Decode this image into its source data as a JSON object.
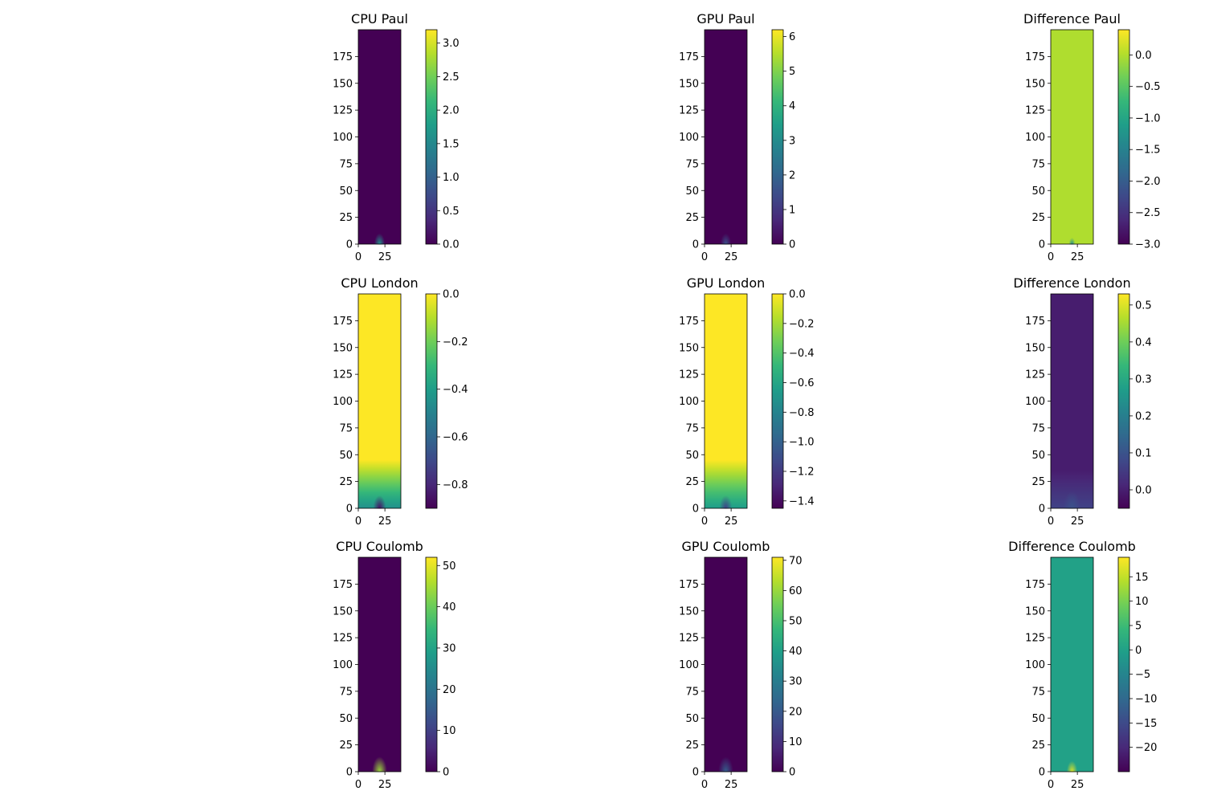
{
  "chart_data": [
    {
      "type": "heatmap",
      "title": "CPU Paul",
      "x_ticks": [
        "0",
        "25"
      ],
      "y_ticks": [
        "0",
        "25",
        "50",
        "75",
        "100",
        "125",
        "150",
        "175"
      ],
      "x_range": [
        0,
        40
      ],
      "y_range": [
        0,
        200
      ],
      "colorbar_range": [
        0,
        3.2
      ],
      "colorbar_ticks": [
        "0.0",
        "0.5",
        "1.0",
        "1.5",
        "2.0",
        "2.5",
        "3.0"
      ],
      "colorbar_tick_values": [
        0,
        0.5,
        1.0,
        1.5,
        2.0,
        2.5,
        3.0
      ],
      "background_level": 0.0,
      "hotspot": {
        "x": 20,
        "level": 0.5,
        "spread": 5
      }
    },
    {
      "type": "heatmap",
      "title": "GPU Paul",
      "x_ticks": [
        "0",
        "25"
      ],
      "y_ticks": [
        "0",
        "25",
        "50",
        "75",
        "100",
        "125",
        "150",
        "175"
      ],
      "x_range": [
        0,
        40
      ],
      "y_range": [
        0,
        200
      ],
      "colorbar_range": [
        0,
        6.2
      ],
      "colorbar_ticks": [
        "0",
        "1",
        "2",
        "3",
        "4",
        "5",
        "6"
      ],
      "colorbar_tick_values": [
        0,
        1,
        2,
        3,
        4,
        5,
        6
      ],
      "background_level": 0.0,
      "hotspot": {
        "x": 20,
        "level": 0.25,
        "spread": 5
      }
    },
    {
      "type": "heatmap",
      "title": "Difference Paul",
      "x_ticks": [
        "0",
        "25"
      ],
      "y_ticks": [
        "0",
        "25",
        "50",
        "75",
        "100",
        "125",
        "150",
        "175"
      ],
      "x_range": [
        0,
        40
      ],
      "y_range": [
        0,
        200
      ],
      "colorbar_range": [
        -3.0,
        0.4
      ],
      "colorbar_ticks": [
        "0.0",
        "−0.5",
        "−1.0",
        "−1.5",
        "−2.0",
        "−2.5",
        "−3.0"
      ],
      "colorbar_tick_values": [
        0,
        -0.5,
        -1.0,
        -1.5,
        -2.0,
        -2.5,
        -3.0
      ],
      "background_level": 0.88,
      "hotspot": {
        "x": 20,
        "level": 0.5,
        "spread": 3
      }
    },
    {
      "type": "heatmap",
      "title": "CPU London",
      "x_ticks": [
        "0",
        "25"
      ],
      "y_ticks": [
        "0",
        "25",
        "50",
        "75",
        "100",
        "125",
        "150",
        "175"
      ],
      "x_range": [
        0,
        40
      ],
      "y_range": [
        0,
        200
      ],
      "colorbar_range": [
        -0.9,
        0.0
      ],
      "colorbar_ticks": [
        "0.0",
        "−0.2",
        "−0.4",
        "−0.6",
        "−0.8"
      ],
      "colorbar_tick_values": [
        0,
        -0.2,
        -0.4,
        -0.6,
        -0.8
      ],
      "background_level": 1.0,
      "gradient": {
        "low_level": 0.5,
        "fade_height": 45
      },
      "hotspot": {
        "x": 20,
        "level": 0.05,
        "spread": 6
      }
    },
    {
      "type": "heatmap",
      "title": "GPU London",
      "x_ticks": [
        "0",
        "25"
      ],
      "y_ticks": [
        "0",
        "25",
        "50",
        "75",
        "100",
        "125",
        "150",
        "175"
      ],
      "x_range": [
        0,
        40
      ],
      "y_range": [
        0,
        200
      ],
      "colorbar_range": [
        -1.45,
        0.0
      ],
      "colorbar_ticks": [
        "0.0",
        "−0.2",
        "−0.4",
        "−0.6",
        "−0.8",
        "−1.0",
        "−1.2",
        "−1.4"
      ],
      "colorbar_tick_values": [
        0,
        -0.2,
        -0.4,
        -0.6,
        -0.8,
        -1.0,
        -1.2,
        -1.4
      ],
      "background_level": 1.0,
      "gradient": {
        "low_level": 0.55,
        "fade_height": 45
      },
      "hotspot": {
        "x": 20,
        "level": 0.2,
        "spread": 6
      }
    },
    {
      "type": "heatmap",
      "title": "Difference London",
      "x_ticks": [
        "0",
        "25"
      ],
      "y_ticks": [
        "0",
        "25",
        "50",
        "75",
        "100",
        "125",
        "150",
        "175"
      ],
      "x_range": [
        0,
        40
      ],
      "y_range": [
        0,
        200
      ],
      "colorbar_range": [
        -0.05,
        0.53
      ],
      "colorbar_ticks": [
        "0.5",
        "0.4",
        "0.3",
        "0.2",
        "0.1",
        "0.0"
      ],
      "colorbar_tick_values": [
        0.5,
        0.4,
        0.3,
        0.2,
        0.1,
        0.0
      ],
      "background_level": 0.08,
      "gradient": {
        "low_level": 0.2,
        "fade_height": 35
      },
      "hotspot": {
        "x": 20,
        "level": 0.25,
        "spread": 8
      }
    },
    {
      "type": "heatmap",
      "title": "CPU Coulomb",
      "x_ticks": [
        "0",
        "25"
      ],
      "y_ticks": [
        "0",
        "25",
        "50",
        "75",
        "100",
        "125",
        "150",
        "175"
      ],
      "x_range": [
        0,
        40
      ],
      "y_range": [
        0,
        200
      ],
      "colorbar_range": [
        0,
        52
      ],
      "colorbar_ticks": [
        "0",
        "10",
        "20",
        "30",
        "40",
        "50"
      ],
      "colorbar_tick_values": [
        0,
        10,
        20,
        30,
        40,
        50
      ],
      "background_level": 0.0,
      "hotspot": {
        "x": 20,
        "level": 0.85,
        "spread": 7
      }
    },
    {
      "type": "heatmap",
      "title": "GPU Coulomb",
      "x_ticks": [
        "0",
        "25"
      ],
      "y_ticks": [
        "0",
        "25",
        "50",
        "75",
        "100",
        "125",
        "150",
        "175"
      ],
      "x_range": [
        0,
        40
      ],
      "y_range": [
        0,
        200
      ],
      "colorbar_range": [
        0,
        71
      ],
      "colorbar_ticks": [
        "0",
        "10",
        "20",
        "30",
        "40",
        "50",
        "60",
        "70"
      ],
      "colorbar_tick_values": [
        0,
        10,
        20,
        30,
        40,
        50,
        60,
        70
      ],
      "background_level": 0.0,
      "hotspot": {
        "x": 20,
        "level": 0.3,
        "spread": 7
      }
    },
    {
      "type": "heatmap",
      "title": "Difference Coulomb",
      "x_ticks": [
        "0",
        "25"
      ],
      "y_ticks": [
        "0",
        "25",
        "50",
        "75",
        "100",
        "125",
        "150",
        "175"
      ],
      "x_range": [
        0,
        40
      ],
      "y_range": [
        0,
        200
      ],
      "colorbar_range": [
        -25,
        19
      ],
      "colorbar_ticks": [
        "15",
        "10",
        "5",
        "0",
        "−5",
        "−10",
        "−15",
        "−20"
      ],
      "colorbar_tick_values": [
        15,
        10,
        5,
        0,
        -5,
        -10,
        -15,
        -20
      ],
      "background_level": 0.57,
      "hotspot": {
        "x": 20,
        "level": 0.95,
        "spread": 5
      }
    }
  ],
  "colormap": {
    "name": "viridis",
    "stops": [
      "#440154",
      "#482878",
      "#3e4989",
      "#31688e",
      "#26828e",
      "#1f9e89",
      "#35b779",
      "#6ece58",
      "#b5de2b",
      "#fde725"
    ]
  }
}
